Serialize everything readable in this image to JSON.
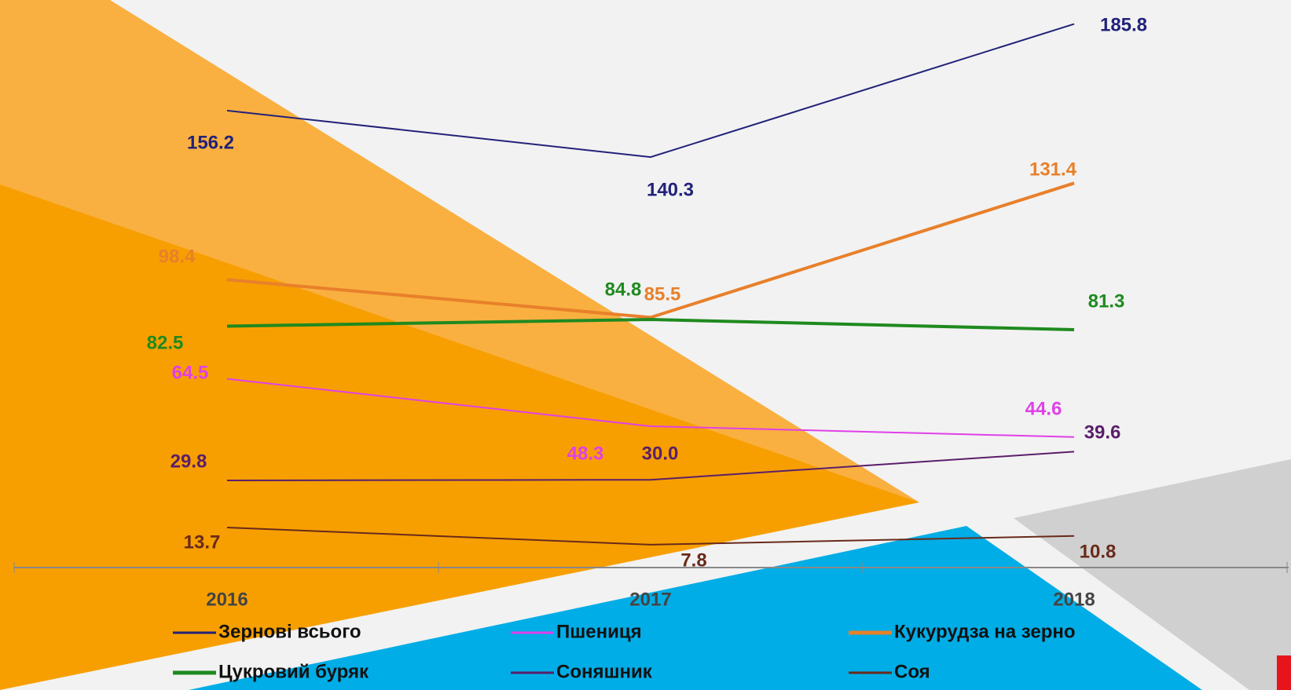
{
  "chart_data": {
    "type": "line",
    "categories": [
      "2016",
      "2017",
      "2018"
    ],
    "series": [
      {
        "name": "Зернові всього",
        "color": "#22227a",
        "values": [
          156.2,
          140.3,
          185.8
        ]
      },
      {
        "name": "Пшениця",
        "color": "#e040e8",
        "values": [
          64.5,
          48.3,
          44.6
        ]
      },
      {
        "name": "Кукурудза на зерно",
        "color": "#e8802a",
        "values": [
          98.4,
          85.5,
          131.4
        ]
      },
      {
        "name": "Цукровий буряк",
        "color": "#1f8a1f",
        "values": [
          82.5,
          84.8,
          81.3
        ]
      },
      {
        "name": "Соняшник",
        "color": "#5a1f6a",
        "values": [
          29.8,
          30.0,
          39.6
        ],
        "value_labels": [
          "29.8",
          "30.0",
          "39.6"
        ]
      },
      {
        "name": "Соя",
        "color": "#6a2a1a",
        "values": [
          13.7,
          7.8,
          10.8
        ]
      }
    ],
    "ylim": [
      0,
      194
    ]
  }
}
